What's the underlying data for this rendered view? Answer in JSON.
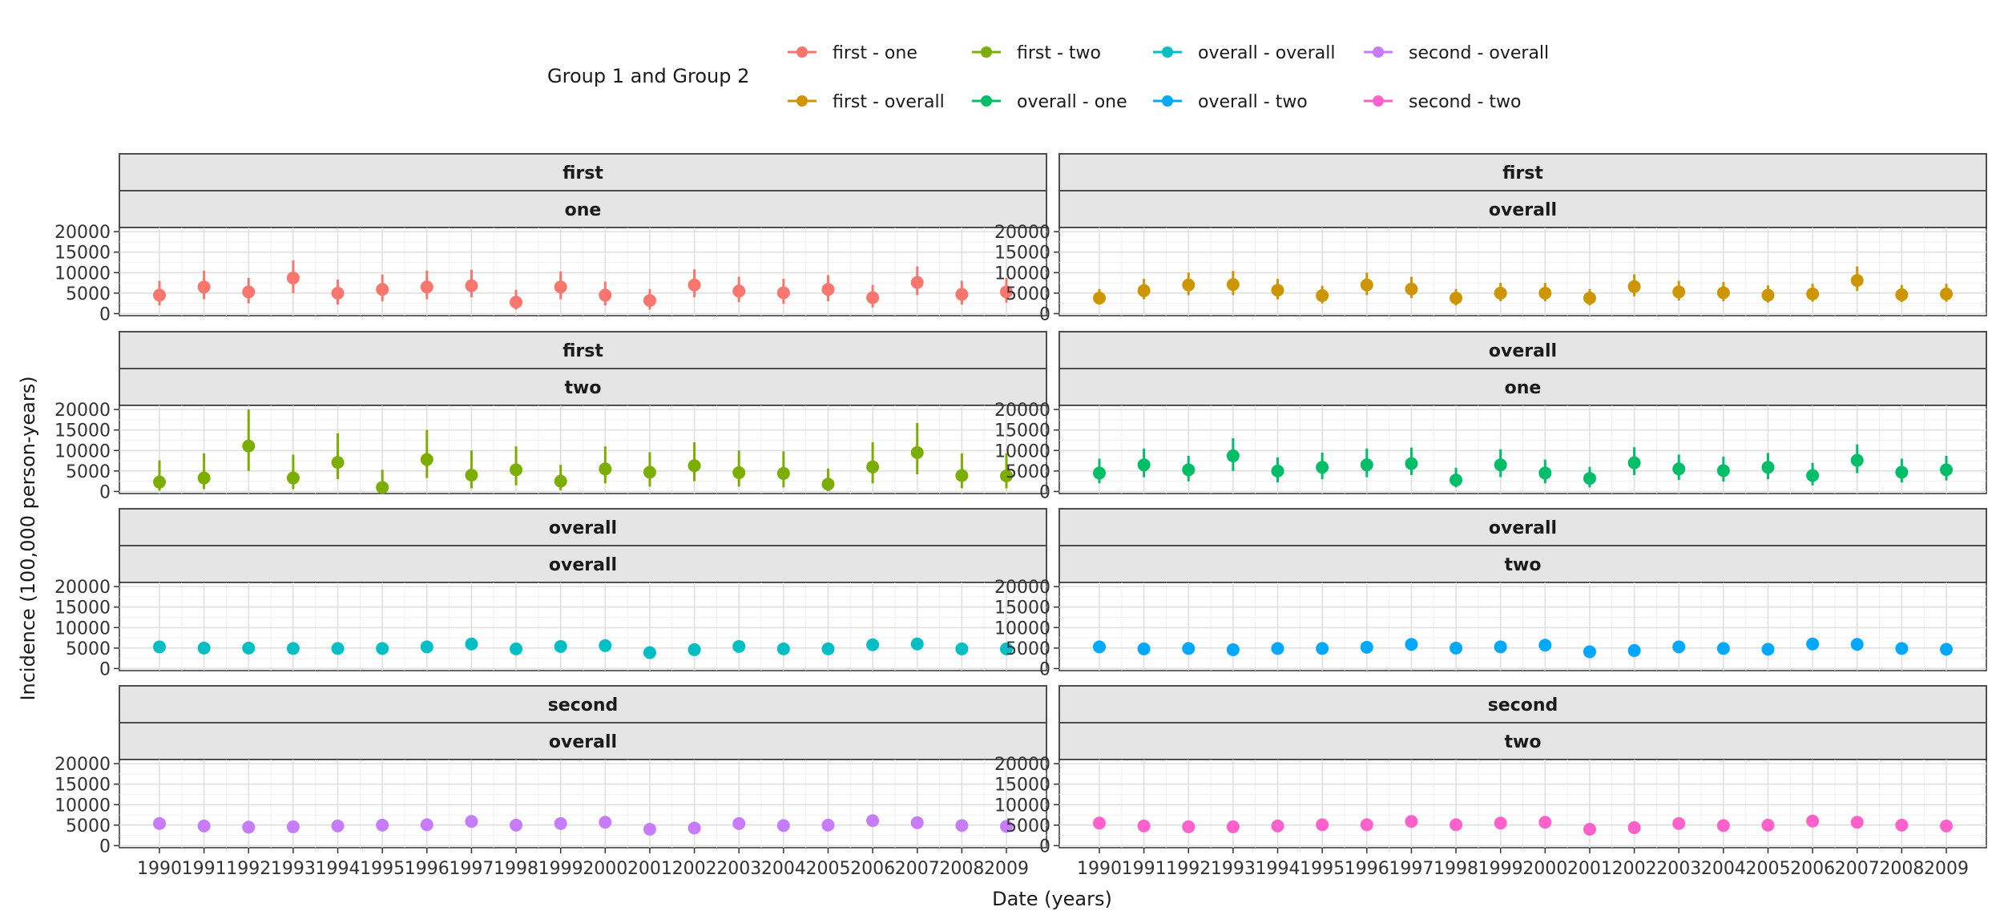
{
  "chart_data": {
    "type": "scatter",
    "xlabel": "Date (years)",
    "ylabel": "Incidence (100,000 person-years)",
    "ylim": [
      -500,
      21000
    ],
    "y_ticks": [
      0,
      5000,
      10000,
      15000,
      20000
    ],
    "x": [
      "1990",
      "1991",
      "1992",
      "1993",
      "1994",
      "1995",
      "1996",
      "1997",
      "1998",
      "1999",
      "2000",
      "2001",
      "2002",
      "2003",
      "2004",
      "2005",
      "2006",
      "2007",
      "2008",
      "2009"
    ],
    "grid": true,
    "legend": {
      "title": "Group 1 and Group 2",
      "position": "top",
      "entries": [
        {
          "label": "first - one",
          "color": "#F8766D"
        },
        {
          "label": "first - two",
          "color": "#7CAE00"
        },
        {
          "label": "overall - overall",
          "color": "#00BFC4"
        },
        {
          "label": "second - overall",
          "color": "#C77CFF"
        },
        {
          "label": "first - overall",
          "color": "#CD9600"
        },
        {
          "label": "overall - one",
          "color": "#00BE67"
        },
        {
          "label": "overall - two",
          "color": "#00A9FF"
        },
        {
          "label": "second - two",
          "color": "#FF61CC"
        }
      ]
    },
    "panels": [
      {
        "strip1": "first",
        "strip2": "one",
        "color": "#F8766D",
        "y": [
          4500,
          6500,
          5300,
          8700,
          5000,
          5900,
          6500,
          6800,
          2800,
          6500,
          4500,
          3200,
          7000,
          5500,
          5100,
          5900,
          3900,
          7600,
          4700,
          5300
        ],
        "ymin": [
          2000,
          3500,
          2500,
          5000,
          2200,
          3000,
          3500,
          4000,
          1000,
          3500,
          2000,
          1000,
          4000,
          2800,
          2400,
          3000,
          1500,
          4500,
          2200,
          2700
        ],
        "ymax": [
          8000,
          10500,
          8700,
          13000,
          8300,
          9500,
          10500,
          10700,
          5800,
          10300,
          7800,
          6000,
          10800,
          9000,
          8500,
          9400,
          7000,
          11500,
          8000,
          8700
        ]
      },
      {
        "strip1": "first",
        "strip2": "overall",
        "color": "#CD9600",
        "y": [
          3800,
          5600,
          7000,
          7100,
          5700,
          4400,
          7000,
          6000,
          3800,
          5000,
          5000,
          3800,
          6600,
          5300,
          5100,
          4500,
          4800,
          8100,
          4600,
          4800
        ],
        "ymin": [
          2200,
          3500,
          4500,
          4500,
          3500,
          2500,
          4500,
          3800,
          2000,
          3000,
          3000,
          2000,
          4200,
          3200,
          3000,
          2700,
          2900,
          5500,
          2800,
          2900
        ],
        "ymax": [
          6000,
          8500,
          10000,
          10400,
          8500,
          6800,
          10000,
          9000,
          6000,
          7500,
          7500,
          6000,
          9600,
          8000,
          7700,
          6900,
          7300,
          11500,
          7000,
          7300
        ]
      },
      {
        "strip1": "first",
        "strip2": "two",
        "color": "#7CAE00",
        "y": [
          2300,
          3300,
          11100,
          3300,
          7100,
          1000,
          7800,
          4000,
          5300,
          2500,
          5500,
          4700,
          6300,
          4600,
          4400,
          1800,
          6000,
          9500,
          3900,
          3800
        ],
        "ymin": [
          200,
          600,
          5000,
          600,
          3000,
          0,
          3300,
          800,
          1500,
          300,
          2000,
          1200,
          2500,
          1200,
          1000,
          100,
          2000,
          4200,
          800,
          800
        ],
        "ymax": [
          7600,
          9300,
          20000,
          9000,
          14200,
          5300,
          15000,
          10000,
          11000,
          6500,
          11000,
          9600,
          12000,
          10000,
          9800,
          5600,
          12000,
          16700,
          9300,
          9300
        ]
      },
      {
        "strip1": "overall",
        "strip2": "one",
        "color": "#00BE67",
        "y": [
          4500,
          6500,
          5300,
          8700,
          5000,
          5900,
          6500,
          6800,
          2800,
          6500,
          4500,
          3200,
          7000,
          5500,
          5100,
          5900,
          3900,
          7600,
          4700,
          5300
        ],
        "ymin": [
          2000,
          3500,
          2500,
          5000,
          2200,
          3000,
          3500,
          4000,
          1000,
          3500,
          2000,
          1000,
          4000,
          2800,
          2400,
          3000,
          1500,
          4500,
          2200,
          2700
        ],
        "ymax": [
          8000,
          10500,
          8700,
          13000,
          8300,
          9500,
          10500,
          10700,
          5800,
          10300,
          7800,
          6000,
          10800,
          9000,
          8500,
          9400,
          7000,
          11500,
          8000,
          8700
        ]
      },
      {
        "strip1": "overall",
        "strip2": "overall",
        "color": "#00BFC4",
        "y": [
          5300,
          5000,
          5000,
          4900,
          4900,
          4900,
          5300,
          6000,
          4800,
          5400,
          5600,
          3900,
          4600,
          5400,
          4800,
          4800,
          5800,
          6000,
          4800,
          4800
        ],
        "ymin": [
          4500,
          4200,
          4200,
          4100,
          4100,
          4100,
          4500,
          5200,
          4000,
          4600,
          4800,
          3200,
          3900,
          4600,
          4100,
          4100,
          5000,
          5200,
          4100,
          4100
        ],
        "ymax": [
          6100,
          5800,
          5800,
          5700,
          5700,
          5700,
          6100,
          6800,
          5600,
          6200,
          6400,
          4600,
          5300,
          6200,
          5600,
          5600,
          6600,
          6800,
          5600,
          5600
        ]
      },
      {
        "strip1": "overall",
        "strip2": "two",
        "color": "#00A9FF",
        "y": [
          5300,
          4800,
          4900,
          4600,
          4900,
          4900,
          5200,
          5900,
          5000,
          5300,
          5700,
          4100,
          4400,
          5300,
          4900,
          4700,
          6000,
          5900,
          4900,
          4700
        ],
        "ymin": [
          4500,
          4100,
          4200,
          3900,
          4200,
          4200,
          4500,
          5100,
          4300,
          4600,
          4900,
          3400,
          3700,
          4600,
          4200,
          4000,
          5200,
          5100,
          4200,
          4000
        ],
        "ymax": [
          6100,
          5600,
          5700,
          5400,
          5700,
          5700,
          6000,
          6700,
          5800,
          6100,
          6500,
          4800,
          5100,
          6100,
          5700,
          5500,
          6800,
          6700,
          5700,
          5500
        ]
      },
      {
        "strip1": "second",
        "strip2": "overall",
        "color": "#C77CFF",
        "y": [
          5400,
          4800,
          4500,
          4600,
          4800,
          5000,
          5100,
          5900,
          5000,
          5400,
          5700,
          4000,
          4300,
          5400,
          4900,
          5000,
          6100,
          5600,
          4900,
          4700
        ],
        "ymin": [
          4700,
          4100,
          3900,
          3900,
          4100,
          4300,
          4400,
          5200,
          4300,
          4700,
          5000,
          3400,
          3700,
          4700,
          4200,
          4300,
          5400,
          4900,
          4200,
          4000
        ],
        "ymax": [
          6100,
          5500,
          5200,
          5300,
          5500,
          5700,
          5800,
          6600,
          5700,
          6100,
          6400,
          4700,
          5000,
          6100,
          5600,
          5700,
          6800,
          6300,
          5600,
          5400
        ]
      },
      {
        "strip1": "second",
        "strip2": "two",
        "color": "#FF61CC",
        "y": [
          5500,
          4800,
          4600,
          4600,
          4800,
          5100,
          5100,
          5900,
          5100,
          5500,
          5700,
          4000,
          4400,
          5400,
          4900,
          5000,
          6000,
          5700,
          5000,
          4800
        ],
        "ymin": [
          4800,
          4100,
          3900,
          3900,
          4100,
          4400,
          4400,
          5200,
          4400,
          4800,
          5000,
          3400,
          3800,
          4700,
          4200,
          4300,
          5300,
          5000,
          4300,
          4100
        ],
        "ymax": [
          6200,
          5500,
          5300,
          5300,
          5500,
          5800,
          5800,
          6600,
          5800,
          6200,
          6400,
          4700,
          5100,
          6100,
          5600,
          5700,
          6700,
          6400,
          5700,
          5500
        ]
      }
    ]
  }
}
